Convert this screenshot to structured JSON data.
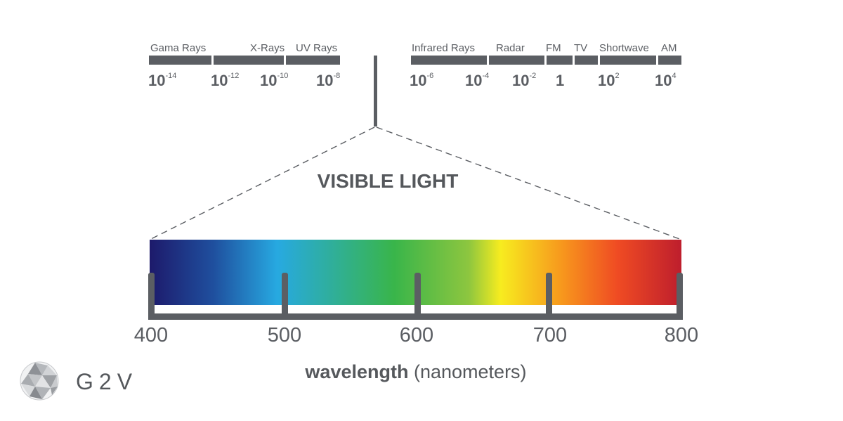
{
  "spectrum": {
    "bands": [
      {
        "label": "Gama Rays"
      },
      {
        "label": "X-Rays"
      },
      {
        "label": "UV Rays"
      },
      {
        "label": "Infrared Rays"
      },
      {
        "label": "Radar"
      },
      {
        "label": "FM"
      },
      {
        "label": "TV"
      },
      {
        "label": "Shortwave"
      },
      {
        "label": "AM"
      }
    ],
    "exponents": [
      {
        "base": "10",
        "sup": "-14"
      },
      {
        "base": "10",
        "sup": "-12"
      },
      {
        "base": "10",
        "sup": "-10"
      },
      {
        "base": "10",
        "sup": "-8"
      },
      {
        "base": "10",
        "sup": "-6"
      },
      {
        "base": "10",
        "sup": "-4"
      },
      {
        "base": "10",
        "sup": "-2"
      },
      {
        "base": "1",
        "sup": ""
      },
      {
        "base": "10",
        "sup": "2"
      },
      {
        "base": "10",
        "sup": "4"
      }
    ]
  },
  "visible": {
    "title": "VISIBLE LIGHT",
    "gradient_colors": [
      "#1d1a6b",
      "#1f4f9e",
      "#27a9e1",
      "#39b54a",
      "#8dc63f",
      "#f7ec1f",
      "#f7941d",
      "#ef4b23",
      "#be1e2d"
    ],
    "ticks": [
      "400",
      "500",
      "600",
      "700",
      "800"
    ]
  },
  "axis": {
    "label_bold": "wavelength",
    "label_rest": "(nanometers)"
  },
  "logo": {
    "text": "G2V"
  },
  "colors": {
    "gray": "#5b5e63"
  }
}
